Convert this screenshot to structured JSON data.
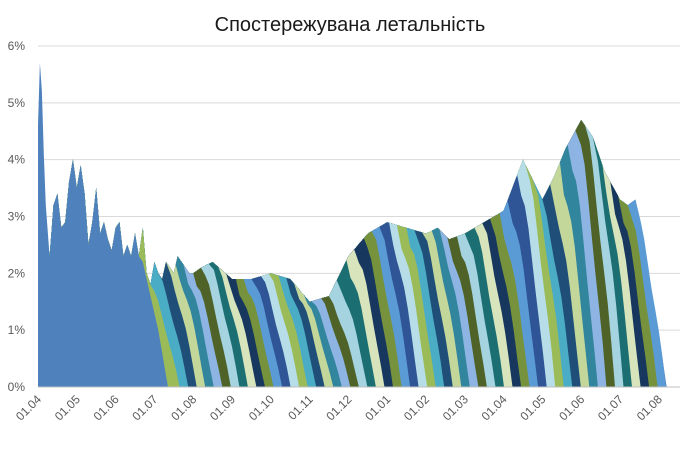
{
  "chart_data": {
    "type": "area",
    "title": "Спостережувана летальність",
    "xlabel": "",
    "ylabel": "",
    "ylim": [
      0,
      6
    ],
    "grid": true,
    "legend": "none",
    "y_ticks": [
      "0%",
      "1%",
      "2%",
      "3%",
      "4%",
      "5%",
      "6%"
    ],
    "x_ticks": [
      "01.04",
      "01.05",
      "01.06",
      "01.07",
      "01.08",
      "01.09",
      "01.10",
      "01.11",
      "01.12",
      "01.01",
      "01.02",
      "01.03",
      "01.04",
      "01.05",
      "01.06",
      "01.07",
      "01.08"
    ],
    "envelope": {
      "x_index": [
        0,
        0.05,
        0.1,
        0.15,
        0.2,
        0.3,
        0.4,
        0.5,
        0.6,
        0.7,
        0.8,
        0.9,
        1.0,
        1.1,
        1.2,
        1.3,
        1.4,
        1.5,
        1.6,
        1.7,
        1.8,
        1.9,
        2.0,
        2.1,
        2.2,
        2.3,
        2.4,
        2.5,
        2.6,
        2.7,
        2.8,
        2.9,
        3.0,
        3.1,
        3.2,
        3.3,
        3.4,
        3.5,
        3.6,
        3.7,
        3.8,
        3.9,
        4.0,
        4.2,
        4.5,
        5.0,
        5.5,
        6.0,
        6.5,
        7.0,
        7.5,
        8.0,
        8.5,
        9.0,
        9.5,
        10.0,
        10.3,
        10.6,
        11.0,
        11.5,
        12.0,
        12.5,
        13.0,
        13.3,
        13.6,
        14.0,
        14.3,
        14.6,
        15.0,
        15.2,
        15.4,
        15.6,
        15.8,
        16.0,
        16.1,
        16.2
      ],
      "values": [
        4.6,
        5.7,
        5.2,
        4.1,
        3.2,
        2.3,
        3.2,
        3.4,
        2.8,
        2.9,
        3.6,
        4.0,
        3.5,
        3.9,
        3.4,
        2.5,
        2.9,
        3.5,
        2.7,
        2.9,
        2.6,
        2.4,
        2.8,
        2.9,
        2.3,
        2.5,
        2.3,
        2.7,
        2.3,
        2.8,
        2.0,
        1.8,
        2.2,
        2.0,
        1.9,
        2.2,
        2.1,
        2.0,
        2.3,
        2.2,
        2.1,
        2.0,
        2.0,
        2.1,
        2.2,
        1.9,
        1.9,
        2.0,
        1.9,
        1.5,
        1.6,
        2.3,
        2.7,
        2.9,
        2.8,
        2.7,
        2.8,
        2.6,
        2.7,
        2.9,
        3.1,
        4.0,
        3.3,
        3.7,
        4.2,
        4.7,
        4.4,
        3.8,
        3.3,
        3.2,
        3.3,
        2.2,
        1.2,
        0.5,
        0.2,
        0.1
      ]
    },
    "first_series": {
      "x_index": [
        0,
        0.05,
        0.1,
        0.15,
        0.2,
        0.3,
        0.4,
        0.5,
        0.6,
        0.7,
        0.8,
        0.9,
        1.0,
        1.1,
        1.2,
        1.3,
        1.4,
        1.5,
        1.6,
        1.7,
        1.8,
        1.9,
        2.0,
        2.1,
        2.2,
        2.3,
        2.4,
        2.5,
        2.6,
        2.7,
        2.8,
        2.9,
        3.0,
        3.1,
        3.2,
        3.3,
        3.35
      ],
      "values": [
        4.6,
        5.7,
        5.2,
        4.1,
        3.2,
        2.3,
        3.2,
        3.4,
        2.8,
        2.9,
        3.6,
        4.0,
        3.5,
        3.9,
        3.4,
        2.5,
        2.9,
        3.5,
        2.7,
        2.9,
        2.6,
        2.4,
        2.8,
        2.9,
        2.3,
        2.5,
        2.3,
        2.7,
        2.3,
        2.2,
        1.9,
        1.6,
        1.3,
        1.0,
        0.6,
        0.2,
        0.0
      ]
    },
    "cohort_colors": [
      "#9bbb59",
      "#4bacc6",
      "#1f4e79",
      "#c4d79b",
      "#31859c",
      "#8db4e2",
      "#4f6228",
      "#a5d3e0",
      "#1b6f73",
      "#d8e4bc",
      "#17375e",
      "#76923c",
      "#5b9bd5",
      "#2f5597",
      "#b7dee8"
    ],
    "first_color": "#4f81bd"
  }
}
